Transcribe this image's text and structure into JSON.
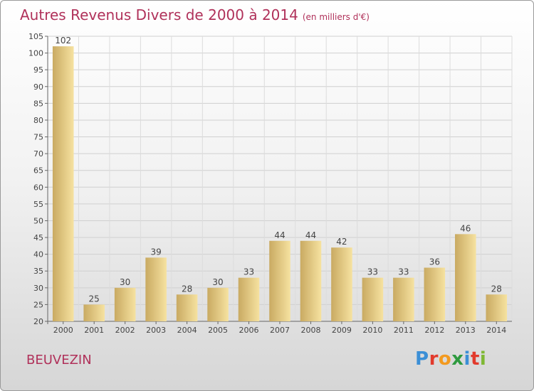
{
  "chart": {
    "title": "Autres Revenus Divers de 2000 à 2014",
    "unit": "(en milliers d'€)"
  },
  "commune": "BEUVEZIN",
  "logo": {
    "text": "Proxiti",
    "letter_colors": [
      "#3b8fd6",
      "#e23a2c",
      "#f39a1f",
      "#2e9a3f",
      "#3b8fd6",
      "#e23a2c",
      "#7fb834"
    ]
  },
  "chart_data": {
    "type": "bar",
    "title": "Autres Revenus Divers de 2000 à 2014",
    "subtitle": "(en milliers d'€)",
    "xlabel": "",
    "ylabel": "",
    "categories": [
      "2000",
      "2001",
      "2002",
      "2003",
      "2004",
      "2005",
      "2006",
      "2007",
      "2008",
      "2009",
      "2010",
      "2011",
      "2012",
      "2013",
      "2014"
    ],
    "values": [
      102,
      25,
      30,
      39,
      28,
      30,
      33,
      44,
      44,
      42,
      33,
      33,
      36,
      46,
      28
    ],
    "ylim": [
      20,
      105
    ],
    "yticks": [
      20,
      25,
      30,
      35,
      40,
      45,
      50,
      55,
      60,
      65,
      70,
      75,
      80,
      85,
      90,
      95,
      100,
      105
    ],
    "grid": true,
    "bar_color_light": "#f6e2a0",
    "bar_color_dark": "#c9aa62"
  }
}
